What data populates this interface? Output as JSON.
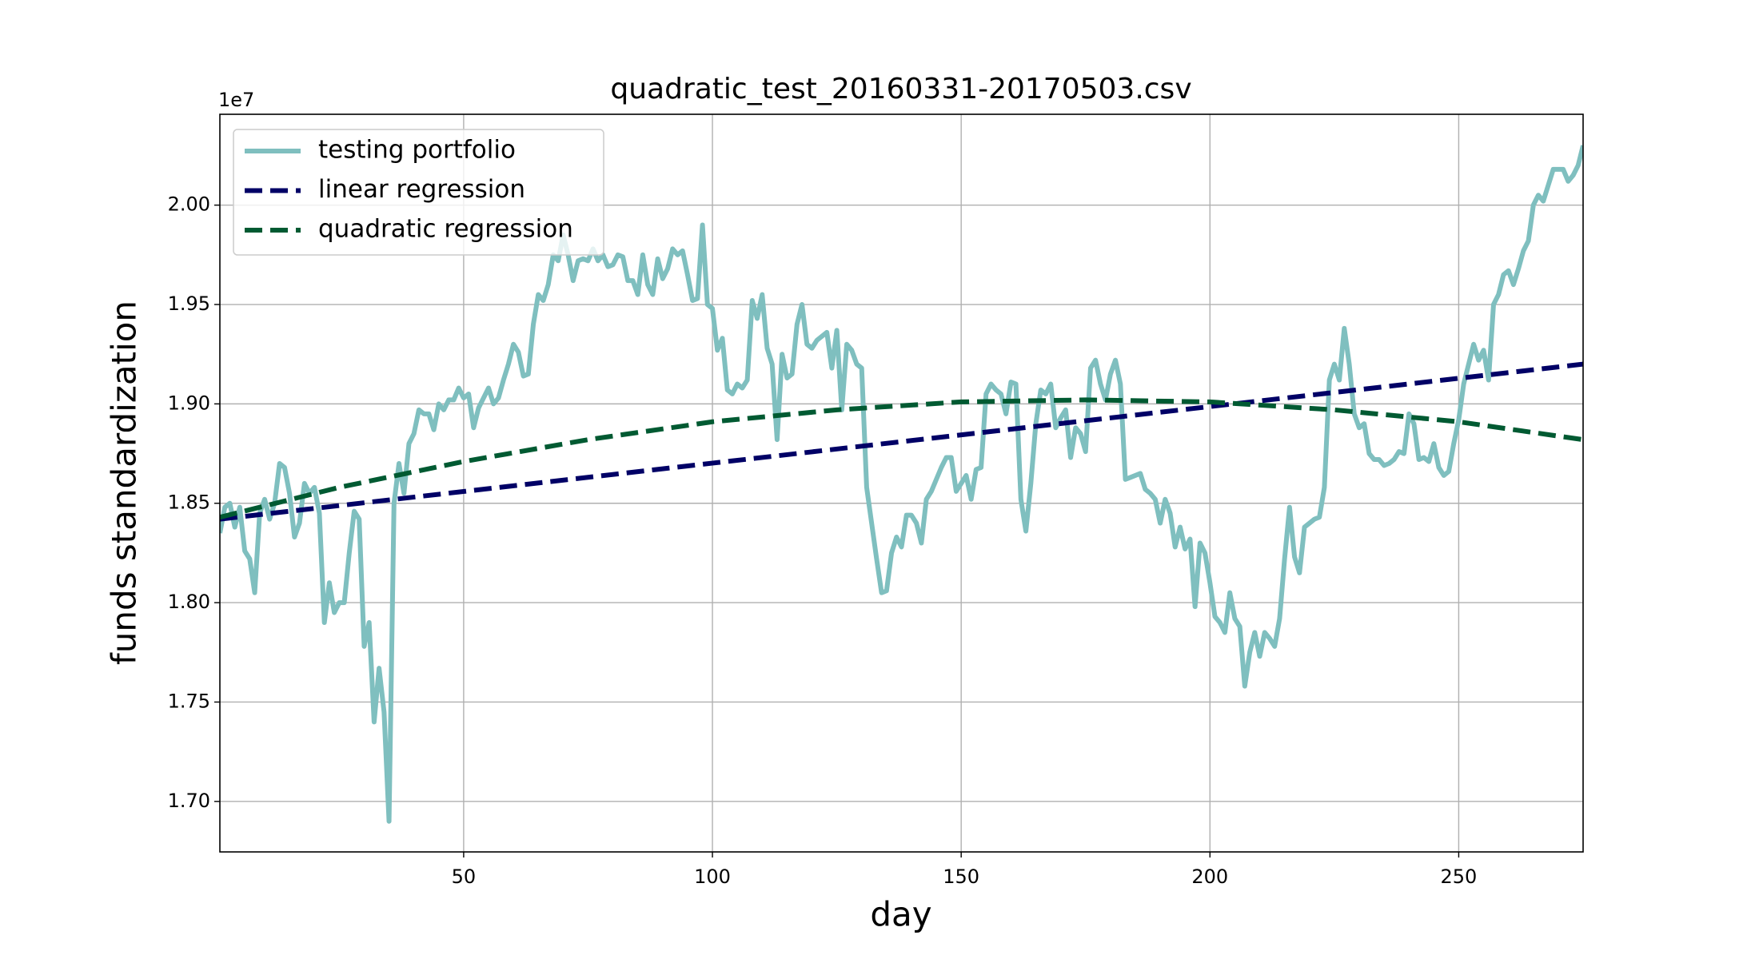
{
  "chart_data": {
    "type": "line",
    "title": "quadratic_test_20160331-20170503.csv",
    "x_label": "day",
    "y_label": "funds standardization",
    "y_offset_label": "1e7",
    "xlim": [
      1,
      275
    ],
    "ylim": [
      1.6746,
      2.0457
    ],
    "xticks": [
      50,
      100,
      150,
      200,
      250
    ],
    "yticks": [
      {
        "value": 1.7,
        "label": "1.70"
      },
      {
        "value": 1.75,
        "label": "1.75"
      },
      {
        "value": 1.8,
        "label": "1.80"
      },
      {
        "value": 1.85,
        "label": "1.85"
      },
      {
        "value": 1.9,
        "label": "1.90"
      },
      {
        "value": 1.95,
        "label": "1.95"
      },
      {
        "value": 2.0,
        "label": "2.00"
      }
    ],
    "grid": true,
    "legend": "upper left",
    "series": [
      {
        "name": "testing portfolio",
        "color": "#7fbfbf",
        "dash": "solid",
        "x": [
          1,
          2,
          3,
          4,
          5,
          6,
          7,
          8,
          9,
          10,
          11,
          12,
          13,
          14,
          15,
          16,
          17,
          18,
          19,
          20,
          21,
          22,
          23,
          24,
          25,
          26,
          27,
          28,
          29,
          30,
          31,
          32,
          33,
          34,
          35,
          36,
          37,
          38,
          39,
          40,
          41,
          42,
          43,
          44,
          45,
          46,
          47,
          48,
          49,
          50,
          51,
          52,
          53,
          54,
          55,
          56,
          57,
          58,
          59,
          60,
          61,
          62,
          63,
          64,
          65,
          66,
          67,
          68,
          69,
          70,
          71,
          72,
          73,
          74,
          75,
          76,
          77,
          78,
          79,
          80,
          81,
          82,
          83,
          84,
          85,
          86,
          87,
          88,
          89,
          90,
          91,
          92,
          93,
          94,
          95,
          96,
          97,
          98,
          99,
          100,
          101,
          102,
          103,
          104,
          105,
          106,
          107,
          108,
          109,
          110,
          111,
          112,
          113,
          114,
          115,
          116,
          117,
          118,
          119,
          120,
          121,
          122,
          123,
          124,
          125,
          126,
          127,
          128,
          129,
          130,
          131,
          132,
          133,
          134,
          135,
          136,
          137,
          138,
          139,
          140,
          141,
          142,
          143,
          144,
          145,
          146,
          147,
          148,
          149,
          150,
          151,
          152,
          153,
          154,
          155,
          156,
          157,
          158,
          159,
          160,
          161,
          162,
          163,
          164,
          165,
          166,
          167,
          168,
          169,
          170,
          171,
          172,
          173,
          174,
          175,
          176,
          177,
          178,
          179,
          180,
          181,
          182,
          183,
          184,
          185,
          186,
          187,
          188,
          189,
          190,
          191,
          192,
          193,
          194,
          195,
          196,
          197,
          198,
          199,
          200,
          201,
          202,
          203,
          204,
          205,
          206,
          207,
          208,
          209,
          210,
          211,
          212,
          213,
          214,
          215,
          216,
          217,
          218,
          219,
          220,
          221,
          222,
          223,
          224,
          225,
          226,
          227,
          228,
          229,
          230,
          231,
          232,
          233,
          234,
          235,
          236,
          237,
          238,
          239,
          240,
          241,
          242,
          243,
          244,
          245,
          246,
          247,
          248,
          249,
          250,
          251,
          252,
          253,
          254,
          255,
          256,
          257,
          258,
          259,
          260,
          261,
          262,
          263,
          264,
          265,
          266,
          267,
          268,
          269,
          270,
          271,
          272,
          273,
          274,
          275
        ],
        "values": [
          1.835,
          1.848,
          1.85,
          1.838,
          1.848,
          1.826,
          1.822,
          1.805,
          1.845,
          1.852,
          1.842,
          1.85,
          1.87,
          1.868,
          1.855,
          1.833,
          1.84,
          1.86,
          1.855,
          1.858,
          1.845,
          1.79,
          1.81,
          1.795,
          1.8,
          1.8,
          1.825,
          1.846,
          1.842,
          1.778,
          1.79,
          1.74,
          1.767,
          1.745,
          1.69,
          1.85,
          1.87,
          1.855,
          1.88,
          1.885,
          1.897,
          1.895,
          1.895,
          1.887,
          1.9,
          1.897,
          1.902,
          1.902,
          1.908,
          1.903,
          1.905,
          1.888,
          1.898,
          1.903,
          1.908,
          1.9,
          1.903,
          1.912,
          1.92,
          1.93,
          1.926,
          1.914,
          1.915,
          1.94,
          1.955,
          1.952,
          1.96,
          1.975,
          1.972,
          1.985,
          1.975,
          1.962,
          1.972,
          1.973,
          1.972,
          1.978,
          1.972,
          1.975,
          1.969,
          1.97,
          1.975,
          1.974,
          1.962,
          1.962,
          1.955,
          1.975,
          1.96,
          1.955,
          1.973,
          1.963,
          1.968,
          1.978,
          1.975,
          1.977,
          1.965,
          1.952,
          1.953,
          1.99,
          1.95,
          1.948,
          1.927,
          1.933,
          1.907,
          1.905,
          1.91,
          1.908,
          1.912,
          1.952,
          1.943,
          1.955,
          1.928,
          1.92,
          1.882,
          1.925,
          1.913,
          1.915,
          1.94,
          1.95,
          1.93,
          1.928,
          1.932,
          1.934,
          1.936,
          1.918,
          1.937,
          1.897,
          1.93,
          1.927,
          1.92,
          1.918,
          1.858,
          1.84,
          1.822,
          1.805,
          1.806,
          1.825,
          1.833,
          1.828,
          1.844,
          1.844,
          1.84,
          1.83,
          1.852,
          1.856,
          1.862,
          1.868,
          1.873,
          1.873,
          1.856,
          1.86,
          1.864,
          1.852,
          1.867,
          1.868,
          1.905,
          1.91,
          1.907,
          1.905,
          1.895,
          1.911,
          1.91,
          1.852,
          1.836,
          1.86,
          1.89,
          1.907,
          1.905,
          1.91,
          1.888,
          1.893,
          1.897,
          1.873,
          1.888,
          1.885,
          1.876,
          1.918,
          1.922,
          1.91,
          1.902,
          1.915,
          1.922,
          1.91,
          1.862,
          1.863,
          1.864,
          1.865,
          1.857,
          1.855,
          1.852,
          1.84,
          1.852,
          1.845,
          1.828,
          1.838,
          1.827,
          1.832,
          1.798,
          1.83,
          1.825,
          1.81,
          1.793,
          1.79,
          1.785,
          1.805,
          1.792,
          1.788,
          1.758,
          1.775,
          1.785,
          1.773,
          1.785,
          1.782,
          1.778,
          1.792,
          1.822,
          1.848,
          1.823,
          1.815,
          1.838,
          1.84,
          1.842,
          1.843,
          1.858,
          1.912,
          1.92,
          1.912,
          1.938,
          1.92,
          1.895,
          1.888,
          1.89,
          1.875,
          1.872,
          1.872,
          1.869,
          1.87,
          1.872,
          1.876,
          1.875,
          1.895,
          1.89,
          1.872,
          1.873,
          1.871,
          1.88,
          1.868,
          1.864,
          1.866,
          1.88,
          1.892,
          1.91,
          1.92,
          1.93,
          1.922,
          1.927,
          1.912,
          1.95,
          1.955,
          1.965,
          1.967,
          1.96,
          1.968,
          1.977,
          1.982,
          2.0,
          2.005,
          2.002,
          2.01,
          2.018,
          2.018,
          2.018,
          2.012,
          2.015,
          2.02,
          2.03
        ]
      },
      {
        "name": "linear regression",
        "color": "#000066",
        "dash": "dashed",
        "x": [
          1,
          275
        ],
        "values": [
          1.842,
          1.92
        ]
      },
      {
        "name": "quadratic regression",
        "color": "#005a32",
        "dash": "dashed",
        "x": [
          1,
          25,
          50,
          75,
          100,
          125,
          150,
          175,
          200,
          225,
          250,
          275
        ],
        "values": [
          1.843,
          1.858,
          1.871,
          1.882,
          1.891,
          1.897,
          1.901,
          1.902,
          1.901,
          1.897,
          1.891,
          1.882
        ]
      }
    ]
  }
}
